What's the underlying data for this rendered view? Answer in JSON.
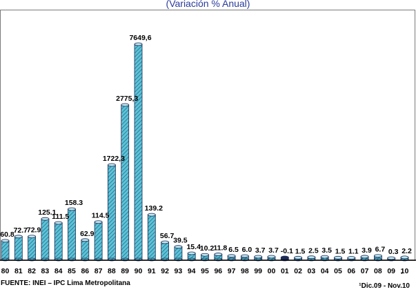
{
  "subtitle": "(Variación % Anual)",
  "source": "FUENTE: INEI – IPC Lima Metropolitana",
  "period": "¹Dic.09 - Nov.10",
  "footnote_mark": "¹",
  "colors": {
    "bar": "#5fc2d8",
    "bar_hatch": "#1b6f86",
    "outline": "#1d2b55",
    "axis": "#000000",
    "title": "#2a3a9c"
  },
  "chart_data": {
    "type": "bar",
    "categories": [
      "80",
      "81",
      "82",
      "83",
      "84",
      "85",
      "86",
      "87",
      "88",
      "89",
      "90",
      "91",
      "92",
      "93",
      "94",
      "95",
      "96",
      "97",
      "98",
      "99",
      "00",
      "01",
      "02",
      "03",
      "04",
      "05",
      "06",
      "07",
      "08",
      "09",
      "10"
    ],
    "values": [
      60.8,
      72.7,
      72.9,
      125.1,
      111.5,
      158.3,
      62.9,
      114.5,
      1722.3,
      2775.3,
      7649.6,
      139.2,
      56.7,
      39.5,
      15.4,
      10.2,
      11.8,
      6.5,
      6.0,
      3.7,
      3.7,
      -0.1,
      1.5,
      2.5,
      3.5,
      1.5,
      1.1,
      3.9,
      6.7,
      0.3,
      2.2
    ],
    "value_labels": [
      "60.8",
      "72.7",
      "72.9",
      "125.1",
      "111.5",
      "158.3",
      "62.9",
      "114.5",
      "1722,3",
      "2775,3",
      "7649,6",
      "139.2",
      "56.7",
      "39.5",
      "15.4",
      "10.2",
      "11.8",
      "6.5",
      "6.0",
      "3.7",
      "3.7",
      "-0.1",
      "1.5",
      "2.5",
      "3.5",
      "1.5",
      "1.1",
      "3.9",
      "6.7",
      "0.3",
      "2.2"
    ],
    "title": "",
    "xlabel": "",
    "ylabel": "",
    "scale": "non-linear (bars not drawn to scale)",
    "grid": false,
    "legend": "none"
  }
}
